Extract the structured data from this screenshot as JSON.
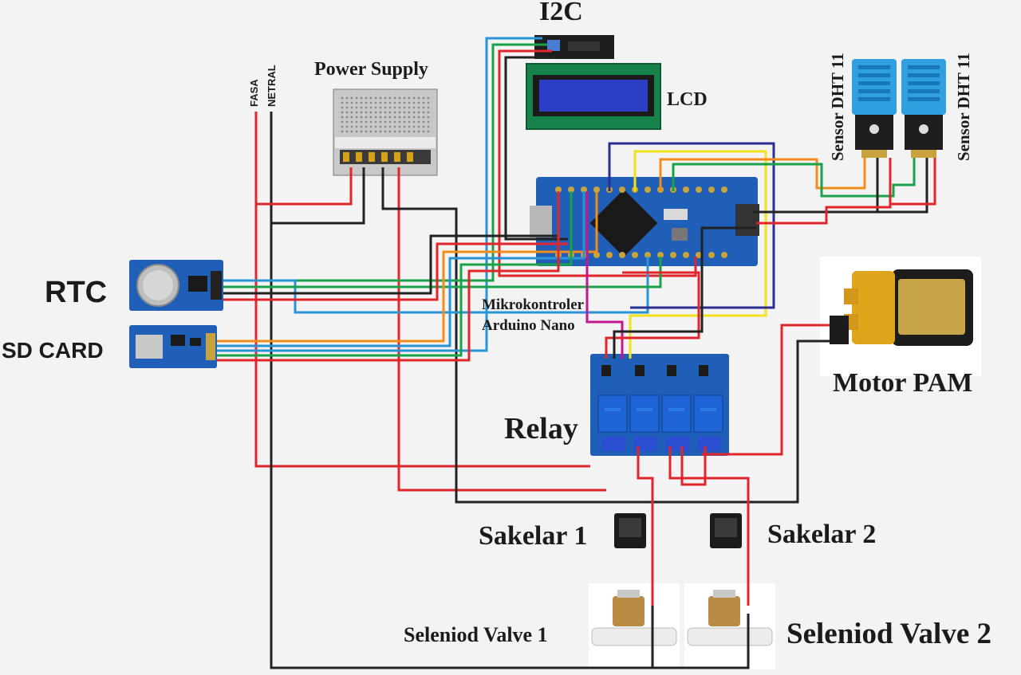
{
  "labels": {
    "i2c": "I2C",
    "power_supply": "Power Supply",
    "lcd": "LCD",
    "fasa": "FASA",
    "netral": "NETRAL",
    "rtc": "RTC",
    "sd_card": "SD CARD",
    "mikro_line1": "Mikrokontroler",
    "mikro_line2": "Arduino Nano",
    "relay": "Relay",
    "motor_pam": "Motor PAM",
    "sensor_dht_1": "Sensor DHT 11",
    "sensor_dht_2": "Sensor DHT 11",
    "sakelar_1": "Sakelar 1",
    "sakelar_2": "Sakelar 2",
    "valve_1": "Seleniod Valve 1",
    "valve_2": "Seleniod Valve 2"
  },
  "colors": {
    "black_wire": "#222222",
    "red_wire": "#e0252b",
    "blue_wire": "#2a93d5",
    "green_wire": "#18a24a",
    "orange_wire": "#f08c1a",
    "yellow_wire": "#f2e21c",
    "magenta_wire": "#c2178f",
    "navy_wire": "#2b2f8f",
    "board_blue": "#1f5fb8",
    "lcd_screen": "#2a3fc4",
    "dht_blue": "#2f9fe0"
  },
  "icons": [
    "arduino-nano-board-icon",
    "power-supply-icon",
    "lcd-display-icon",
    "i2c-module-icon",
    "rtc-module-icon",
    "sd-card-module-icon",
    "relay-module-icon",
    "dht11-sensor-icon",
    "water-pump-icon",
    "rocker-switch-icon",
    "solenoid-valve-icon"
  ]
}
